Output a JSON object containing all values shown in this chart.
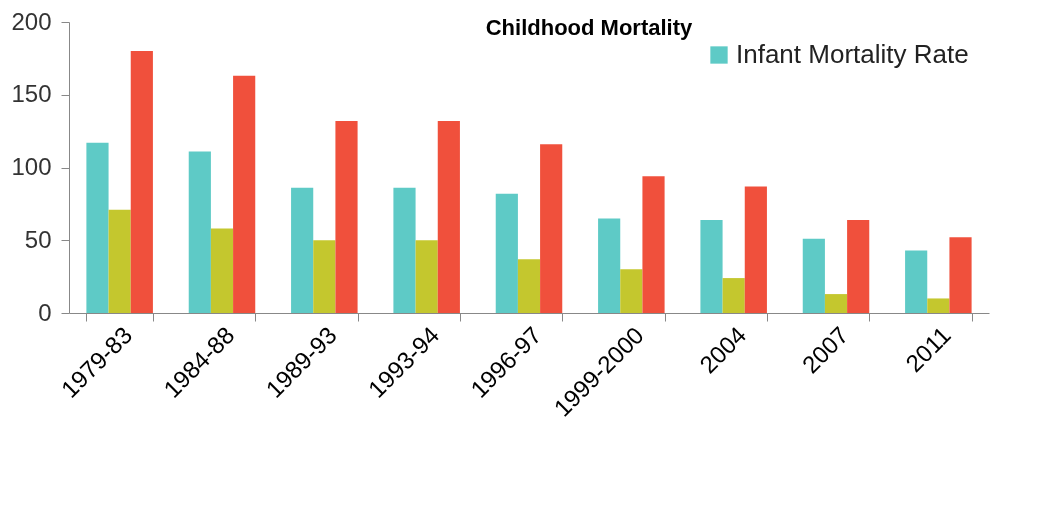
{
  "chart_data": {
    "type": "bar",
    "title": "Childhood Mortality",
    "categories": [
      "1979-83",
      "1984-88",
      "1989-93",
      "1993-94",
      "1996-97",
      "1999-2000",
      "2004",
      "2007",
      "2011"
    ],
    "series": [
      {
        "name": "Infant Mortality Rate",
        "color": "#5ecac6",
        "values": [
          117,
          111,
          86,
          86,
          82,
          65,
          64,
          51,
          43
        ]
      },
      {
        "color": "#c4c72e",
        "values": [
          71,
          58,
          50,
          50,
          37,
          30,
          24,
          13,
          10
        ]
      },
      {
        "color": "#f0503c",
        "values": [
          180,
          163,
          132,
          132,
          116,
          94,
          87,
          64,
          52
        ]
      }
    ],
    "ylim": [
      0,
      200
    ],
    "yticks": [
      0,
      50,
      100,
      150,
      200
    ],
    "grid": false,
    "legend": "top right"
  }
}
